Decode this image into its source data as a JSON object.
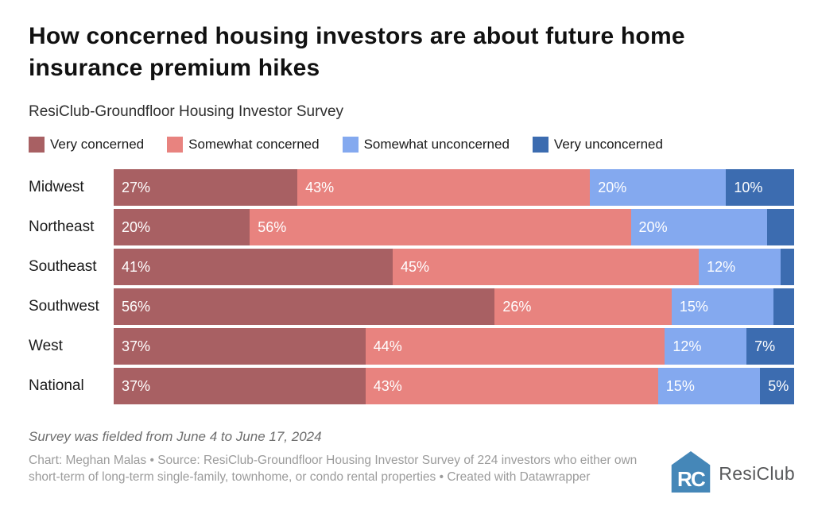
{
  "header": {
    "title": "How concerned housing investors are about future home insurance premium hikes",
    "subtitle": "ResiClub-Groundfloor Housing Investor Survey"
  },
  "legend": [
    {
      "label": "Very concerned",
      "color": "#A86063"
    },
    {
      "label": "Somewhat concerned",
      "color": "#E8837F"
    },
    {
      "label": "Somewhat unconcerned",
      "color": "#84A9EF"
    },
    {
      "label": "Very unconcerned",
      "color": "#3C6CB0"
    }
  ],
  "chart_data": {
    "type": "bar",
    "stacked": true,
    "orientation": "horizontal",
    "title": "How concerned housing investors are about future home insurance premium hikes",
    "subtitle": "ResiClub-Groundfloor Housing Investor Survey",
    "categories": [
      "Midwest",
      "Northeast",
      "Southeast",
      "Southwest",
      "West",
      "National"
    ],
    "series": [
      {
        "name": "Very concerned",
        "color": "#A86063",
        "values": [
          27,
          20,
          41,
          56,
          37,
          37
        ]
      },
      {
        "name": "Somewhat concerned",
        "color": "#E8837F",
        "values": [
          43,
          56,
          45,
          26,
          44,
          43
        ]
      },
      {
        "name": "Somewhat unconcerned",
        "color": "#84A9EF",
        "values": [
          20,
          20,
          12,
          15,
          12,
          15
        ]
      },
      {
        "name": "Very unconcerned",
        "color": "#3C6CB0",
        "values": [
          10,
          4,
          2,
          3,
          7,
          5
        ]
      }
    ],
    "value_suffix": "%",
    "label_min_value": 5,
    "xlim": [
      0,
      100
    ],
    "grid": false,
    "legend_position": "top"
  },
  "footer": {
    "note": "Survey was fielded from June 4 to June 17, 2024",
    "caption": "Chart: Meghan Malas • Source: ResiClub-Groundfloor Housing Investor Survey of 224 investors who either own short-term of long-term single-family, townhome, or condo rental properties • Created with Datawrapper",
    "logo_text": "ResiClub",
    "logo_color": "#4587B8"
  }
}
